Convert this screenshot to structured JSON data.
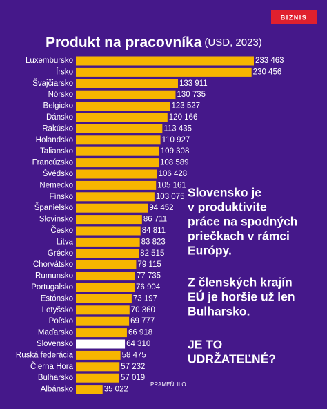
{
  "badge": "BIZNIS",
  "chart_data": {
    "type": "bar",
    "orientation": "horizontal",
    "title": "Produkt na pracovníka",
    "subtitle": "(USD, 2023)",
    "categories": [
      "Luxembursko",
      "Írsko",
      "Švajčiarsko",
      "Nórsko",
      "Belgicko",
      "Dánsko",
      "Rakúsko",
      "Holandsko",
      "Taliansko",
      "Francúzsko",
      "Švédsko",
      "Nemecko",
      "Fínsko",
      "Španielsko",
      "Slovinsko",
      "Česko",
      "Litva",
      "Grécko",
      "Chorvátsko",
      "Rumunsko",
      "Portugalsko",
      "Estónsko",
      "Lotyšsko",
      "Poľsko",
      "Maďarsko",
      "Slovensko",
      "Ruská federácia",
      "Čierna Hora",
      "Bulharsko",
      "Albánsko"
    ],
    "values": [
      233463,
      230456,
      133911,
      130735,
      123527,
      120166,
      113435,
      110927,
      109308,
      108589,
      106428,
      105161,
      103075,
      94452,
      86711,
      84811,
      83823,
      82515,
      79115,
      77735,
      76904,
      73197,
      70360,
      69777,
      66918,
      64310,
      58475,
      57232,
      57019,
      35022
    ],
    "value_labels": [
      "233 463",
      "230 456",
      "133 911",
      "130 735",
      "123 527",
      "120 166",
      "113 435",
      "110 927",
      "109 308",
      "108 589",
      "106 428",
      "105 161",
      "103 075",
      "94 452",
      "86 711",
      "84 811",
      "83 823",
      "82 515",
      "79 115",
      "77 735",
      "76 904",
      "73 197",
      "70 360",
      "69 777",
      "66 918",
      "64 310",
      "58 475",
      "57 232",
      "57 019",
      "35 022"
    ],
    "colors": [
      "#f7b500",
      "#f7b500",
      "#f7b500",
      "#f7b500",
      "#f7b500",
      "#f7b500",
      "#f7b500",
      "#f7b500",
      "#f7b500",
      "#f7b500",
      "#f7b500",
      "#f7b500",
      "#f7b500",
      "#f7b500",
      "#f7b500",
      "#f7b500",
      "#f7b500",
      "#f7b500",
      "#f7b500",
      "#f7b500",
      "#f7b500",
      "#f7b500",
      "#f7b500",
      "#f7b500",
      "#f7b500",
      "#ffffff",
      "#f7b500",
      "#f7b500",
      "#f7b500",
      "#f7b500"
    ],
    "annotations": [
      [
        "Slovensko je",
        "v produktivite",
        "práce na spodných",
        "priečkach v rámci",
        "Európy."
      ],
      [
        "Z členských krajín",
        "EÚ je horšie už len",
        "Bulharsko."
      ],
      [
        "JE TO",
        "UDRŽATEĽNÉ?"
      ]
    ],
    "source": "PRAMEŇ: ILO"
  }
}
